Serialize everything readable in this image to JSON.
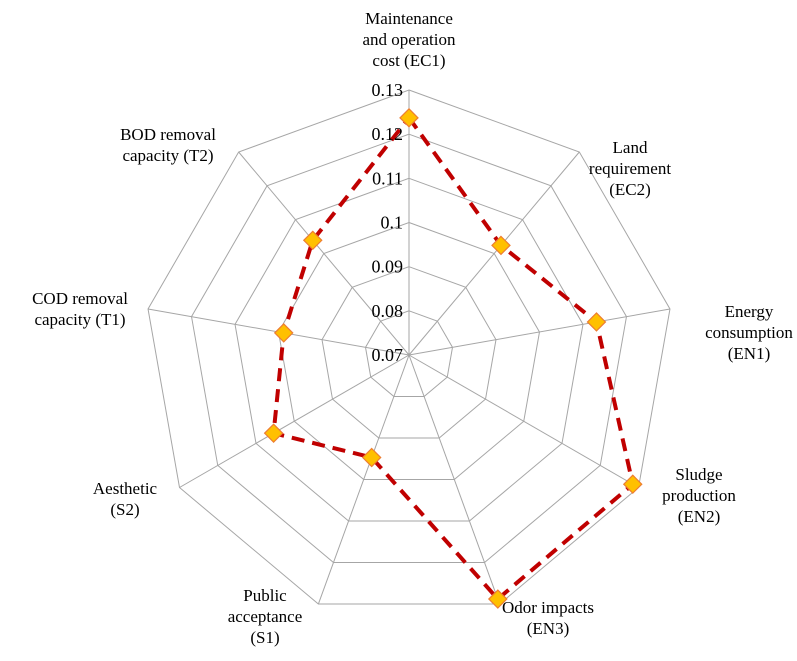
{
  "chart_data": {
    "type": "radar",
    "title": "",
    "rmin": 0.07,
    "rmax": 0.13,
    "ticks": [
      "0.07",
      "0.08",
      "0.09",
      "0.1",
      "0.11",
      "0.12",
      "0.13"
    ],
    "tick_values": [
      0.07,
      0.08,
      0.09,
      0.1,
      0.11,
      0.12,
      0.13
    ],
    "grid": true,
    "legend": "none",
    "axes": [
      {
        "lines": [
          "Maintenance",
          "and operation",
          "cost (EC1)"
        ]
      },
      {
        "lines": [
          "Land",
          "requirement",
          "(EC2)"
        ]
      },
      {
        "lines": [
          "Energy",
          "consumption",
          "(EN1)"
        ]
      },
      {
        "lines": [
          "Sludge",
          "production",
          "(EN2)"
        ]
      },
      {
        "lines": [
          "Odor impacts",
          "(EN3)"
        ]
      },
      {
        "lines": [
          "Public",
          "acceptance",
          "(S1)"
        ]
      },
      {
        "lines": [
          "Aesthetic",
          "(S2)"
        ]
      },
      {
        "lines": [
          "COD removal",
          "capacity (T1)"
        ]
      },
      {
        "lines": [
          "BOD removal",
          "capacity (T2)"
        ]
      }
    ],
    "series": [
      {
        "values": [
          0.1237,
          0.1024,
          0.1131,
          0.1285,
          0.1288,
          0.0947,
          0.1054,
          0.0988,
          0.1039
        ],
        "line_color": "#c00000",
        "marker_fill": "#ffc000",
        "marker_stroke": "#ed7d31"
      }
    ],
    "colors": {
      "grid": "#a6a6a6"
    }
  }
}
